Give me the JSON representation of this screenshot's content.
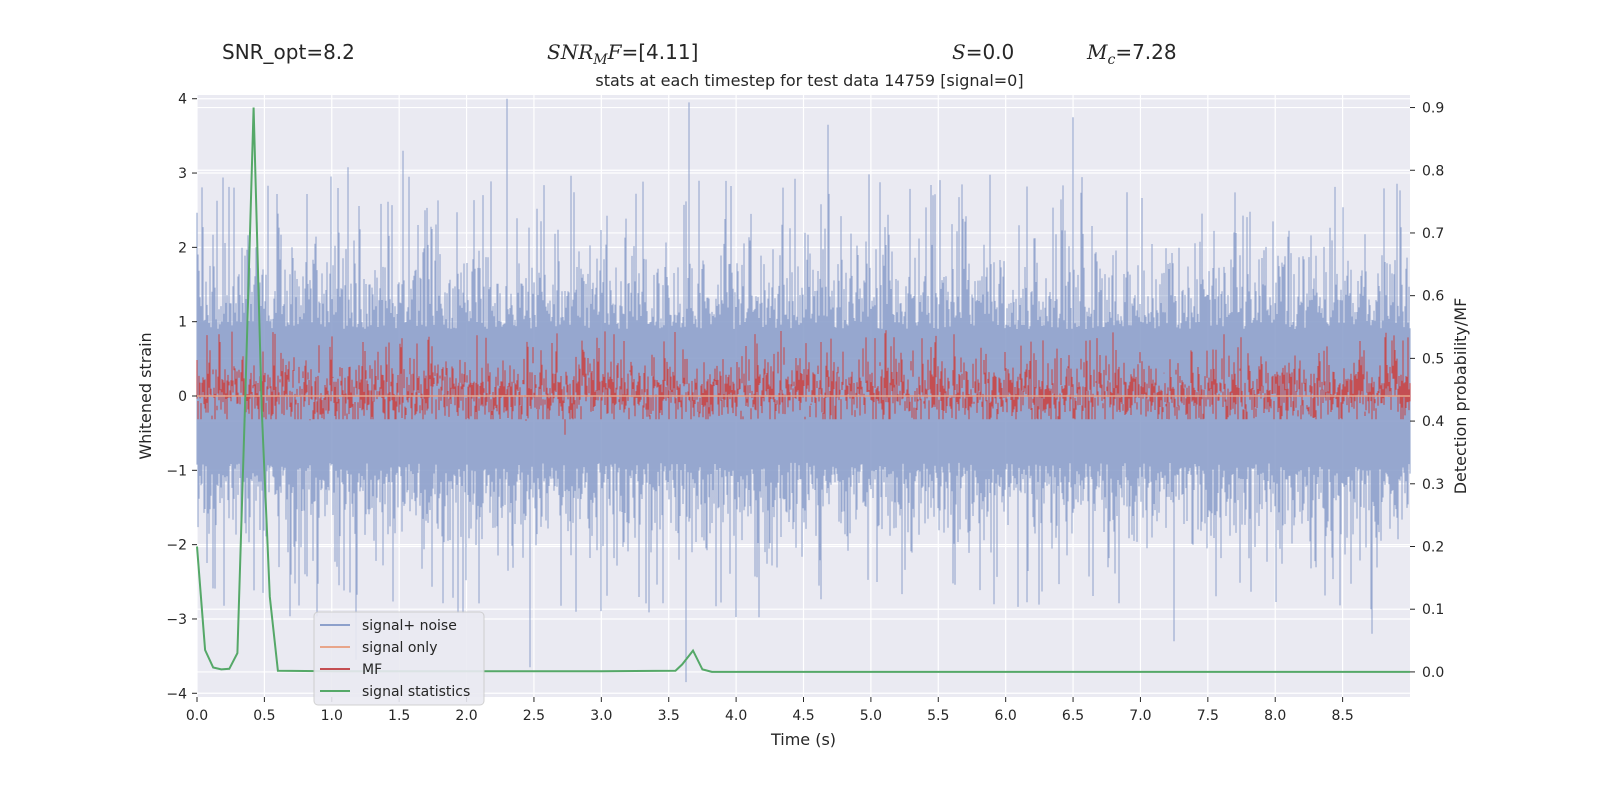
{
  "header": {
    "snr_opt": "SNR_opt=8.2",
    "snr_mf_var": "SNR",
    "snr_mf_sub": "M",
    "snr_mf_f": "F",
    "snr_mf_val": "=[4.11]",
    "s_var": "S",
    "s_val": "=0.0",
    "mc_var": "M",
    "mc_sub": "c",
    "mc_val": "=7.28"
  },
  "chart_data": {
    "type": "line",
    "title": "stats at each timestep for test data 14759 [signal=0]",
    "xlabel": "Time (s)",
    "ylabel": "Whitened strain",
    "y2label": "Detection probability/MF",
    "xlim": [
      0.0,
      9.0
    ],
    "ylim": [
      -4.05,
      4.05
    ],
    "y2lim": [
      -0.04,
      0.92
    ],
    "xticks": [
      "0.0",
      "0.5",
      "1.0",
      "1.5",
      "2.0",
      "2.5",
      "3.0",
      "3.5",
      "4.0",
      "4.5",
      "5.0",
      "5.5",
      "6.0",
      "6.5",
      "7.0",
      "7.5",
      "8.0",
      "8.5"
    ],
    "yticks": [
      "−4",
      "−3",
      "−2",
      "−1",
      "0",
      "1",
      "2",
      "3",
      "4"
    ],
    "y2ticks": [
      "0.0",
      "0.1",
      "0.2",
      "0.3",
      "0.4",
      "0.5",
      "0.6",
      "0.7",
      "0.8",
      "0.9"
    ],
    "grid": true,
    "legend_position": "lower-left",
    "series": [
      {
        "name": "signal+ noise",
        "color": "#8da0cb",
        "description": "whitened noise, amplitude ~±2 with peaks to ±4, sampled densely over 0–9 s",
        "spikes": [
          {
            "x": 2.3,
            "y": 4.0
          },
          {
            "x": 2.47,
            "y": -3.65
          },
          {
            "x": 3.65,
            "y": 3.95
          },
          {
            "x": 3.63,
            "y": -3.85
          },
          {
            "x": 6.5,
            "y": 3.75
          },
          {
            "x": 4.68,
            "y": 3.65
          },
          {
            "x": 1.53,
            "y": 3.3
          },
          {
            "x": 1.18,
            "y": -3.55
          },
          {
            "x": 7.25,
            "y": -3.3
          },
          {
            "x": 8.72,
            "y": -3.2
          }
        ]
      },
      {
        "name": "signal only",
        "color": "#e8a58a",
        "value": 0.0
      },
      {
        "name": "MF",
        "color": "#c44e52",
        "axis": "right",
        "description": "matched-filter output fluctuating between ~0.4 and ~0.55 on right axis",
        "range": [
          0.4,
          0.55
        ]
      },
      {
        "name": "signal statistics",
        "color": "#55a868",
        "axis": "right",
        "x": [
          0.0,
          0.06,
          0.12,
          0.18,
          0.24,
          0.3,
          0.36,
          0.42,
          0.48,
          0.54,
          0.6,
          1.0,
          2.0,
          3.0,
          3.55,
          3.6,
          3.68,
          3.75,
          3.82,
          4.0,
          5.0,
          6.0,
          7.0,
          8.0,
          9.0
        ],
        "y": [
          0.2,
          0.035,
          0.007,
          0.004,
          0.005,
          0.03,
          0.45,
          0.9,
          0.42,
          0.12,
          0.002,
          0.001,
          0.001,
          0.001,
          0.002,
          0.012,
          0.034,
          0.004,
          0.0,
          0.0,
          0.0,
          0.0,
          0.0,
          0.0,
          0.0
        ]
      }
    ]
  }
}
